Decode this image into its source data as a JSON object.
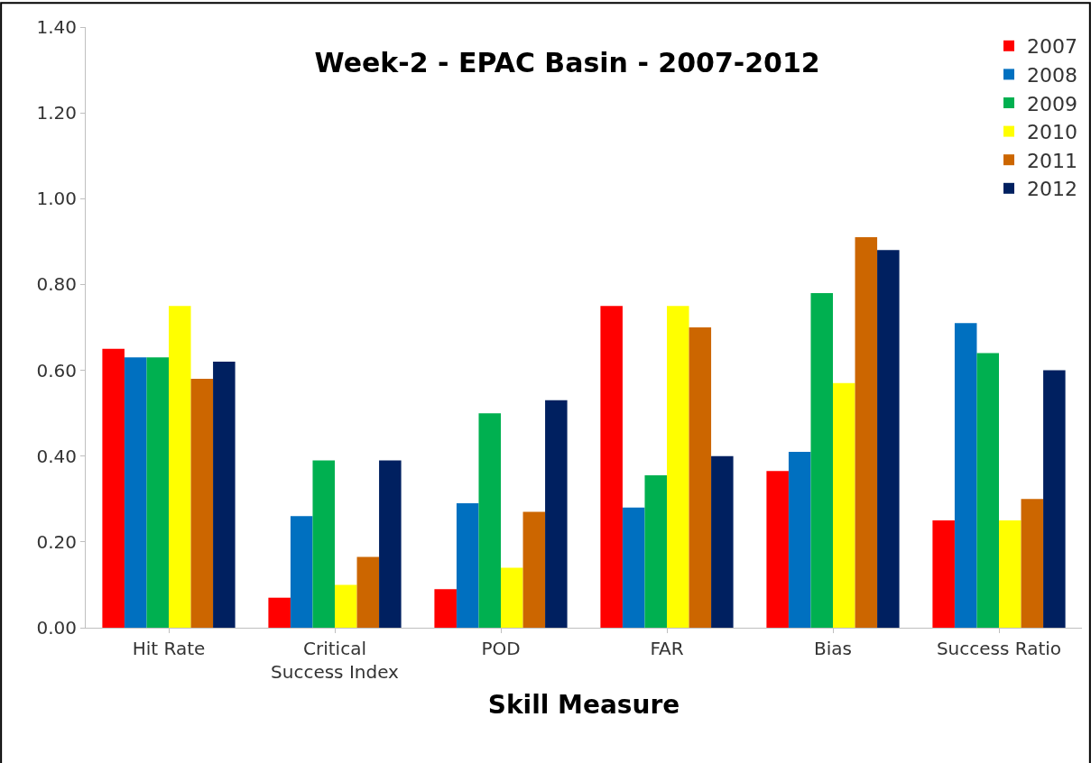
{
  "chart_data": {
    "type": "bar",
    "title": "Week-2 - EPAC Basin - 2007-2012",
    "xlabel": "Skill Measure",
    "categories": [
      "Hit Rate",
      "Critical Success Index",
      "POD",
      "FAR",
      "Bias",
      "Success Ratio"
    ],
    "series": [
      {
        "name": "2007",
        "color": "#ff0000",
        "values": [
          0.65,
          0.07,
          0.09,
          0.75,
          0.365,
          0.25
        ]
      },
      {
        "name": "2008",
        "color": "#0070c0",
        "values": [
          0.63,
          0.26,
          0.29,
          0.28,
          0.41,
          0.71
        ]
      },
      {
        "name": "2009",
        "color": "#00b050",
        "values": [
          0.63,
          0.39,
          0.5,
          0.355,
          0.78,
          0.64
        ]
      },
      {
        "name": "2010",
        "color": "#ffff00",
        "values": [
          0.75,
          0.1,
          0.14,
          0.75,
          0.57,
          0.25
        ]
      },
      {
        "name": "2011",
        "color": "#cc6600",
        "values": [
          0.58,
          0.165,
          0.27,
          0.7,
          0.91,
          0.3
        ]
      },
      {
        "name": "2012",
        "color": "#002060",
        "values": [
          0.62,
          0.39,
          0.53,
          0.4,
          0.88,
          0.6
        ]
      }
    ],
    "ylim": [
      0,
      1.4
    ],
    "yticks": [
      {
        "value": 0,
        "label": "0.00"
      },
      {
        "value": 0.2,
        "label": "0.20"
      },
      {
        "value": 0.4,
        "label": "0.40"
      },
      {
        "value": 0.6,
        "label": "0.60"
      },
      {
        "value": 0.8,
        "label": "0.80"
      },
      {
        "value": 1.0,
        "label": "1.00"
      },
      {
        "value": 1.2,
        "label": "1.20"
      },
      {
        "value": 1.4,
        "label": "1.40"
      }
    ],
    "legend": "top right"
  }
}
